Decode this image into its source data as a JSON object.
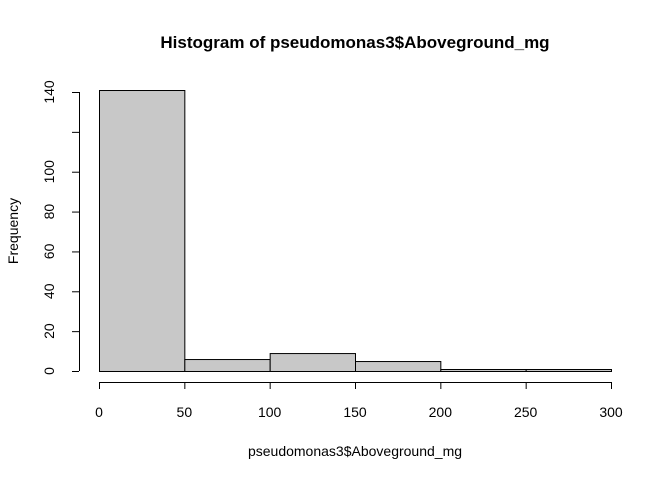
{
  "chart_data": {
    "type": "bar",
    "title": "Histogram of pseudomonas3$Aboveground_mg",
    "xlabel": "pseudomonas3$Aboveground_mg",
    "ylabel": "Frequency",
    "bins": [
      {
        "start": 0,
        "end": 50,
        "count": 141
      },
      {
        "start": 50,
        "end": 100,
        "count": 6
      },
      {
        "start": 100,
        "end": 150,
        "count": 9
      },
      {
        "start": 150,
        "end": 200,
        "count": 5
      },
      {
        "start": 200,
        "end": 250,
        "count": 1
      },
      {
        "start": 250,
        "end": 300,
        "count": 1
      }
    ],
    "xlim": [
      0,
      300
    ],
    "ylim": [
      0,
      140
    ],
    "xticks": [
      0,
      50,
      100,
      150,
      200,
      250,
      300
    ],
    "yticks": [
      0,
      20,
      40,
      60,
      80,
      100,
      120,
      140
    ],
    "ytick_labels": [
      "0",
      "20",
      "40",
      "60",
      "80",
      "100",
      "",
      "140"
    ],
    "bar_color": "#c8c8c8",
    "grid": false
  }
}
